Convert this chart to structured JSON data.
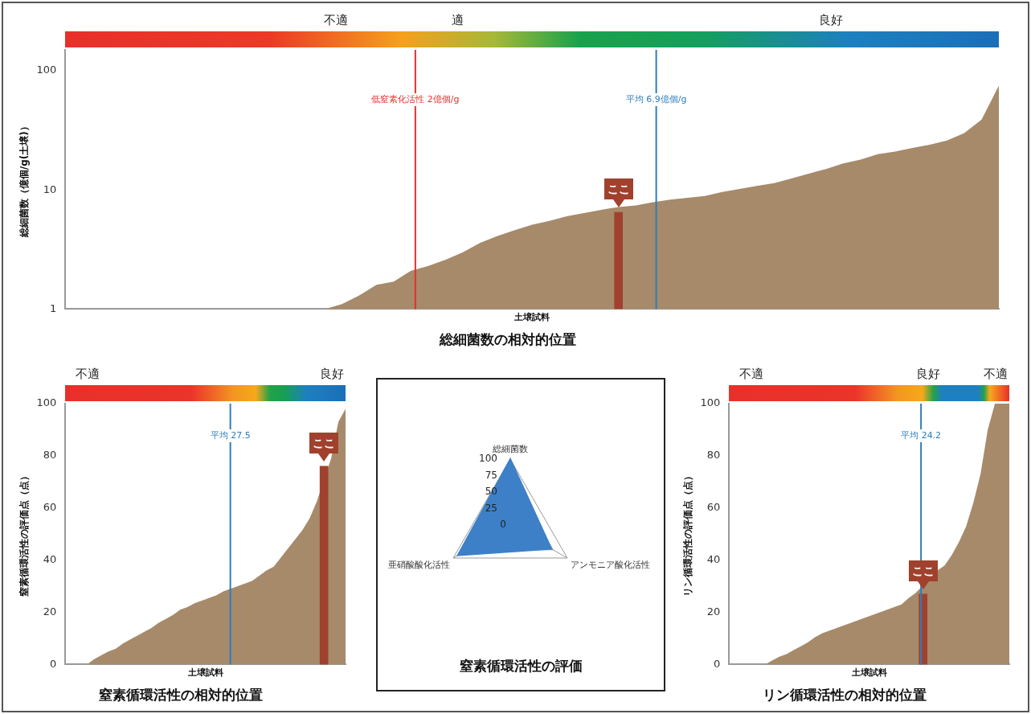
{
  "chart_data": [
    {
      "type": "area",
      "title": "総細菌数の相対的位置",
      "xlabel": "土壌試料",
      "ylabel": "総細菌数（億個/g(土壌)）",
      "categories": [
        null,
        null,
        null,
        null,
        null,
        null,
        null,
        null,
        null,
        null,
        null,
        null,
        null,
        null,
        null,
        null,
        null,
        null,
        null,
        null,
        null,
        null,
        null,
        null,
        null,
        null,
        null,
        null,
        null,
        null,
        null,
        null,
        null,
        null,
        null,
        null,
        null,
        null,
        null,
        null,
        null,
        null,
        null,
        null,
        null,
        null,
        null,
        null,
        null,
        null,
        null,
        null,
        null,
        null,
        null
      ],
      "series": [
        {
          "color": "#a68a6a",
          "values": [
            1,
            1,
            1,
            1,
            1,
            1,
            1,
            1,
            1,
            1,
            1,
            1,
            1,
            1,
            1,
            1,
            1.1,
            1.3,
            1.6,
            1.7,
            2.1,
            2.3,
            2.6,
            3,
            3.6,
            4.1,
            4.6,
            5.1,
            5.5,
            6,
            6.4,
            6.8,
            7.2,
            7.4,
            7.9,
            8.3,
            8.6,
            8.9,
            9.6,
            10.2,
            10.8,
            11.4,
            12.5,
            13.7,
            15,
            16.7,
            18,
            20,
            21,
            22.5,
            24,
            26,
            30,
            39,
            75
          ]
        },
        {
          "type": "bar",
          "name": "ここ",
          "color": "#a0412d",
          "values": [
            null,
            null,
            null,
            null,
            null,
            null,
            null,
            null,
            null,
            null,
            null,
            null,
            null,
            null,
            null,
            null,
            null,
            null,
            null,
            null,
            null,
            null,
            null,
            null,
            null,
            null,
            null,
            null,
            null,
            null,
            null,
            null,
            6.5,
            null,
            null,
            null,
            null,
            null,
            null,
            null,
            null,
            null,
            null,
            null,
            null,
            null,
            null,
            null,
            null,
            null,
            null,
            null,
            null,
            null,
            null
          ]
        }
      ],
      "log": "y",
      "ylim": [
        1,
        150
      ],
      "yticks": [
        1,
        10,
        100
      ],
      "grid": false,
      "legend": false,
      "tick_labels": "y",
      "annotations": [
        "不適",
        "適",
        "良好",
        "低窒素化活性 2億個/g",
        "平均 6.9億個/g"
      ]
    },
    {
      "type": "area",
      "title": "窒素循環活性の相対的位置",
      "xlabel": "土壌試料",
      "ylabel": "窒素循環活性の評価点（点）",
      "categories": [
        null,
        null,
        null,
        null,
        null,
        null,
        null,
        null,
        null,
        null,
        null,
        null,
        null,
        null,
        null,
        null,
        null,
        null,
        null,
        null,
        null,
        null,
        null,
        null,
        null,
        null,
        null,
        null,
        null,
        null,
        null,
        null,
        null,
        null,
        null,
        null,
        null,
        null,
        null,
        null
      ],
      "series": [
        {
          "color": "#a68a6a",
          "values": [
            0,
            0,
            0,
            0,
            2,
            3.5,
            5,
            6,
            8,
            9.5,
            11,
            12.5,
            14,
            16,
            17.5,
            19,
            21,
            22,
            23.5,
            24.5,
            25.5,
            26.5,
            28,
            29,
            30,
            31,
            32,
            34,
            36,
            37.5,
            41,
            44.5,
            48,
            51.5,
            56,
            62.5,
            null,
            79,
            93,
            98
          ]
        },
        {
          "type": "bar",
          "name": "ここ",
          "color": "#a0412d",
          "values": [
            null,
            null,
            null,
            null,
            null,
            null,
            null,
            null,
            null,
            null,
            null,
            null,
            null,
            null,
            null,
            null,
            null,
            null,
            null,
            null,
            null,
            null,
            null,
            null,
            null,
            null,
            null,
            null,
            null,
            null,
            null,
            null,
            null,
            null,
            null,
            null,
            76,
            null,
            null,
            null
          ]
        }
      ],
      "ylim": [
        0,
        100
      ],
      "yticks": [
        0,
        20,
        40,
        60,
        80,
        100
      ],
      "grid": false,
      "legend": false,
      "tick_labels": "y",
      "annotations": [
        "不適",
        "良好",
        "平均 27.5"
      ]
    },
    {
      "type": "radar",
      "title": "窒素循環活性の評価",
      "categories": [
        "総細菌数",
        "アンモニア酸化活性",
        "亜硝酸酸化活性"
      ],
      "series": [
        {
          "color": "#3d80c8",
          "values": [
            100,
            72,
            92
          ]
        }
      ],
      "ylim": [
        0,
        100
      ],
      "yticks": [
        0,
        25,
        50,
        75,
        100
      ],
      "grid": true,
      "legend": false
    },
    {
      "type": "area",
      "title": "リン循環活性の相対的位置",
      "xlabel": "土壌試料",
      "ylabel": "リン循環活性の評価点（点）",
      "categories": [
        null,
        null,
        null,
        null,
        null,
        null,
        null,
        null,
        null,
        null,
        null,
        null,
        null,
        null,
        null,
        null,
        null,
        null,
        null,
        null,
        null,
        null,
        null,
        null,
        null,
        null,
        null,
        null,
        null,
        null,
        null,
        null,
        null,
        null,
        null,
        null,
        null,
        null,
        null,
        null
      ],
      "series": [
        {
          "color": "#a68a6a",
          "values": [
            0,
            0,
            0,
            0,
            0,
            0,
            1.5,
            3,
            4,
            5.5,
            7,
            8.5,
            10.5,
            12,
            13,
            14,
            15,
            16,
            17,
            18,
            19,
            20,
            21,
            22,
            23,
            25.5,
            27.5,
            null,
            null,
            36,
            38,
            42,
            47,
            53,
            62,
            73,
            90,
            100,
            100,
            100
          ]
        },
        {
          "type": "bar",
          "name": "ここ",
          "color": "#a0412d",
          "values": [
            null,
            null,
            null,
            null,
            null,
            null,
            null,
            null,
            null,
            null,
            null,
            null,
            null,
            null,
            null,
            null,
            null,
            null,
            null,
            null,
            null,
            null,
            null,
            null,
            null,
            null,
            null,
            27,
            null,
            null,
            null,
            null,
            null,
            null,
            null,
            null,
            null,
            null,
            null,
            null
          ]
        }
      ],
      "ylim": [
        0,
        100
      ],
      "yticks": [
        0,
        20,
        40,
        60,
        80,
        100
      ],
      "grid": false,
      "legend": false,
      "tick_labels": "y",
      "annotations": [
        "不適",
        "良好",
        "不適",
        "平均 24.2"
      ]
    }
  ]
}
